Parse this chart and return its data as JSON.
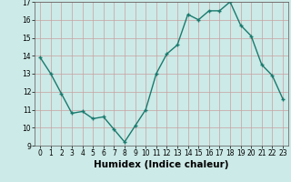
{
  "x": [
    0,
    1,
    2,
    3,
    4,
    5,
    6,
    7,
    8,
    9,
    10,
    11,
    12,
    13,
    14,
    15,
    16,
    17,
    18,
    19,
    20,
    21,
    22,
    23
  ],
  "y": [
    13.9,
    13.0,
    11.9,
    10.8,
    10.9,
    10.5,
    10.6,
    9.9,
    9.2,
    10.1,
    11.0,
    13.0,
    14.1,
    14.6,
    16.3,
    16.0,
    16.5,
    16.5,
    17.0,
    15.7,
    15.1,
    13.5,
    12.9,
    11.6
  ],
  "line_color": "#1a7a6e",
  "marker": "+",
  "marker_size": 3,
  "marker_linewidth": 1.0,
  "bg_color": "#cceae7",
  "grid_color": "#c8a0a0",
  "xlabel": "Humidex (Indice chaleur)",
  "ylim": [
    9,
    17
  ],
  "xlim": [
    -0.5,
    23.5
  ],
  "yticks": [
    9,
    10,
    11,
    12,
    13,
    14,
    15,
    16,
    17
  ],
  "xticks": [
    0,
    1,
    2,
    3,
    4,
    5,
    6,
    7,
    8,
    9,
    10,
    11,
    12,
    13,
    14,
    15,
    16,
    17,
    18,
    19,
    20,
    21,
    22,
    23
  ],
  "tick_fontsize": 5.5,
  "xlabel_fontsize": 7.5,
  "linewidth": 1.0
}
